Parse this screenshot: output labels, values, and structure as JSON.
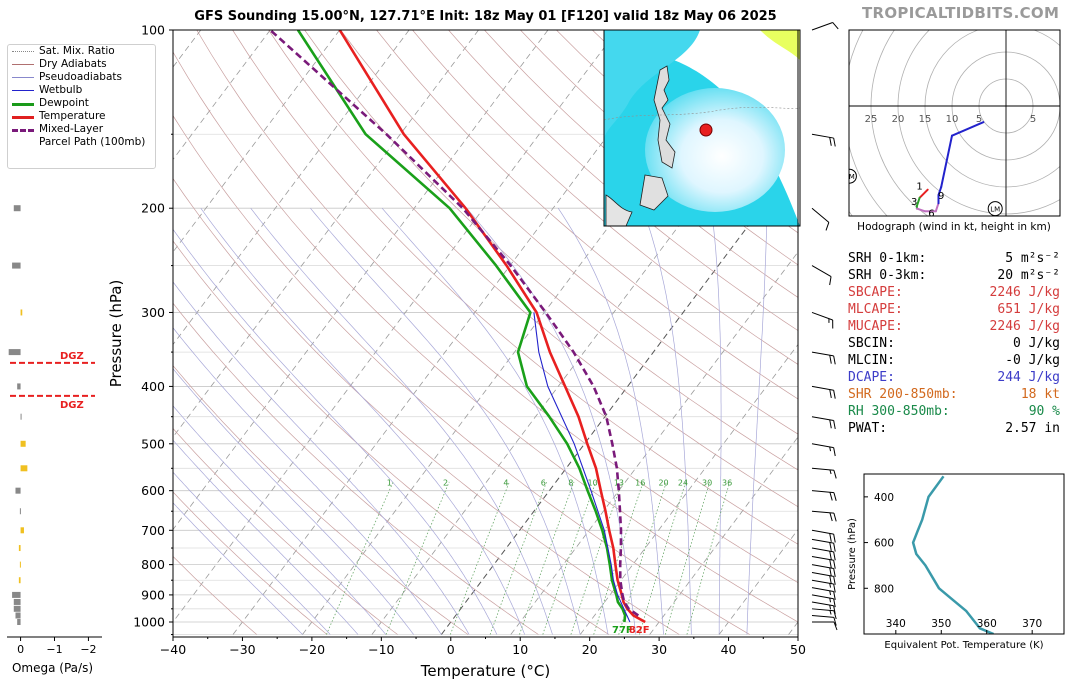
{
  "title": "GFS Sounding 15.00°N, 127.71°E Init: 18z May 01 [F120] valid 18z May 06 2025",
  "watermark": "TROPICALTIDBITS.COM",
  "legend": [
    {
      "label": "Sat. Mix. Ratio",
      "color": "#888888",
      "style": "dotted"
    },
    {
      "label": "Dry Adiabats",
      "color": "#b07070",
      "style": "thin"
    },
    {
      "label": "Pseudoadiabats",
      "color": "#8888cc",
      "style": "thin"
    },
    {
      "label": "Wetbulb",
      "color": "#2222cc",
      "style": "solid"
    },
    {
      "label": "Dewpoint",
      "color": "#1a9a1a",
      "style": "thick"
    },
    {
      "label": "Temperature",
      "color": "#e02020",
      "style": "thick"
    },
    {
      "label": "Mixed-Layer\nParcel Path (100mb)",
      "color": "#7a1a7a",
      "style": "dashed"
    }
  ],
  "indices": [
    {
      "label": "SRH 0-1km:",
      "value": "5 m²s⁻²",
      "color": "#000000"
    },
    {
      "label": "SRH 0-3km:",
      "value": "20 m²s⁻²",
      "color": "#000000"
    },
    {
      "label": "SBCAPE:",
      "value": "2246 J/kg",
      "color": "#d43c3c"
    },
    {
      "label": "MLCAPE:",
      "value": "651 J/kg",
      "color": "#d43c3c"
    },
    {
      "label": "MUCAPE:",
      "value": "2246 J/kg",
      "color": "#d43c3c"
    },
    {
      "label": "SBCIN:",
      "value": "0 J/kg",
      "color": "#000000"
    },
    {
      "label": "MLCIN:",
      "value": "-0 J/kg",
      "color": "#000000"
    },
    {
      "label": "DCAPE:",
      "value": "244 J/kg",
      "color": "#3c3cc8"
    },
    {
      "label": "SHR 200-850mb:",
      "value": "18 kt",
      "color": "#d2691e"
    },
    {
      "label": "RH 300-850mb:",
      "value": "90 %",
      "color": "#1a8a4a"
    },
    {
      "label": "PWAT:",
      "value": "2.57 in",
      "color": "#000000"
    }
  ],
  "chart_data": [
    {
      "type": "line",
      "name": "skew-t",
      "xlabel": "Temperature (°C)",
      "ylabel": "Pressure (hPa)",
      "xlim": [
        -40,
        50
      ],
      "ylim": [
        1050,
        100
      ],
      "yscale": "log",
      "skew_deg_per_decade": 64,
      "x_ticks": [
        -40,
        -30,
        -20,
        -10,
        0,
        10,
        20,
        30,
        40,
        50
      ],
      "y_ticks": [
        100,
        200,
        300,
        400,
        500,
        600,
        700,
        800,
        900,
        1000
      ],
      "series": [
        {
          "name": "Temperature",
          "color": "#e82020",
          "p": [
            1000,
            975,
            950,
            925,
            900,
            850,
            800,
            750,
            700,
            650,
            600,
            550,
            500,
            450,
            400,
            350,
            300,
            250,
            200,
            150,
            100
          ],
          "t": [
            28.0,
            25.6,
            24.0,
            22.7,
            21.7,
            19.5,
            17.5,
            15.4,
            12.9,
            10.3,
            7.4,
            4.3,
            0.4,
            -3.8,
            -9.0,
            -14.9,
            -21.1,
            -30.5,
            -42.6,
            -59.5,
            -80.0
          ]
        },
        {
          "name": "Dewpoint",
          "color": "#1aa01a",
          "p": [
            1000,
            975,
            950,
            925,
            900,
            850,
            800,
            750,
            700,
            650,
            600,
            550,
            500,
            450,
            400,
            350,
            300,
            250,
            200,
            150,
            100
          ],
          "t": [
            25.0,
            24.4,
            23.3,
            21.9,
            20.9,
            18.7,
            16.7,
            14.5,
            11.9,
            8.9,
            5.5,
            1.9,
            -2.5,
            -8.0,
            -14.5,
            -19.5,
            -22.0,
            -32.0,
            -44.9,
            -65.0,
            -86.0
          ]
        },
        {
          "name": "Wetbulb",
          "color": "#2222cc",
          "p": [
            1000,
            950,
            900,
            850,
            800,
            700,
            600,
            500,
            400,
            350,
            300
          ],
          "t": [
            25.8,
            23.5,
            21.1,
            18.9,
            16.9,
            12.2,
            6.0,
            -1.5,
            -11.5,
            -16.5,
            -21.5
          ]
        },
        {
          "name": "Mixed-Layer Parcel Path (100mb)",
          "color": "#7a1a7a",
          "dash": true,
          "p": [
            975,
            950,
            925,
            900,
            850,
            800,
            750,
            700,
            650,
            600,
            550,
            500,
            450,
            400,
            350,
            300,
            250,
            200,
            150,
            100
          ],
          "t": [
            26.3,
            24.2,
            22.8,
            21.8,
            19.9,
            18.2,
            16.5,
            14.6,
            12.4,
            10.0,
            7.3,
            4.0,
            0.2,
            -4.9,
            -11.5,
            -19.8,
            -29.9,
            -43.0,
            -62.0,
            -90.0
          ]
        }
      ],
      "mixing_ratio_labels": [
        "1",
        "2",
        "4",
        "6",
        "8",
        "10",
        "13",
        "16",
        "20",
        "24",
        "30",
        "36"
      ],
      "mixing_ratios": [
        1,
        2,
        4,
        6,
        8,
        10,
        13,
        16,
        20,
        24,
        30,
        36
      ],
      "surface_labels": {
        "dewpoint": "77F",
        "temperature": "82F"
      },
      "wind_barbs": [
        {
          "p": 1000,
          "speed_kt": 10,
          "dir": 90
        },
        {
          "p": 975,
          "speed_kt": 12,
          "dir": 95
        },
        {
          "p": 950,
          "speed_kt": 14,
          "dir": 95
        },
        {
          "p": 925,
          "speed_kt": 15,
          "dir": 100
        },
        {
          "p": 900,
          "speed_kt": 15,
          "dir": 100
        },
        {
          "p": 875,
          "speed_kt": 16,
          "dir": 100
        },
        {
          "p": 850,
          "speed_kt": 17,
          "dir": 100
        },
        {
          "p": 825,
          "speed_kt": 18,
          "dir": 100
        },
        {
          "p": 800,
          "speed_kt": 18,
          "dir": 100
        },
        {
          "p": 775,
          "speed_kt": 18,
          "dir": 100
        },
        {
          "p": 750,
          "speed_kt": 18,
          "dir": 100
        },
        {
          "p": 725,
          "speed_kt": 18,
          "dir": 100
        },
        {
          "p": 700,
          "speed_kt": 18,
          "dir": 100
        },
        {
          "p": 650,
          "speed_kt": 18,
          "dir": 95
        },
        {
          "p": 600,
          "speed_kt": 18,
          "dir": 95
        },
        {
          "p": 550,
          "speed_kt": 16,
          "dir": 95
        },
        {
          "p": 500,
          "speed_kt": 16,
          "dir": 100
        },
        {
          "p": 450,
          "speed_kt": 18,
          "dir": 100
        },
        {
          "p": 400,
          "speed_kt": 20,
          "dir": 100
        },
        {
          "p": 350,
          "speed_kt": 18,
          "dir": 100
        },
        {
          "p": 300,
          "speed_kt": 15,
          "dir": 110
        },
        {
          "p": 250,
          "speed_kt": 12,
          "dir": 120
        },
        {
          "p": 200,
          "speed_kt": 10,
          "dir": 130
        },
        {
          "p": 150,
          "speed_kt": 20,
          "dir": 100
        },
        {
          "p": 100,
          "speed_kt": 10,
          "dir": 70
        }
      ]
    },
    {
      "type": "bar",
      "name": "omega",
      "xlabel": "Omega (Pa/s)",
      "xlim": [
        0.4,
        -2.4
      ],
      "x_ticks": [
        0,
        -1,
        -2
      ],
      "x_tick_labels": [
        "0",
        "−1",
        "−2"
      ],
      "p": [
        1000,
        975,
        950,
        925,
        900,
        850,
        800,
        750,
        700,
        650,
        600,
        550,
        500,
        450,
        400,
        350,
        300,
        250,
        200,
        150
      ],
      "values": [
        0.1,
        0.15,
        0.2,
        0.2,
        0.25,
        0.05,
        0.02,
        0.05,
        -0.1,
        0.02,
        0.15,
        -0.2,
        -0.15,
        0.0,
        0.1,
        0.35,
        -0.05,
        0.25,
        0.2,
        0.25
      ],
      "bar_colors": [
        "#888888",
        "#888888",
        "#888888",
        "#888888",
        "#888888",
        "#f0c020",
        "#f0c020",
        "#f0c020",
        "#f0c020",
        "#888888",
        "#888888",
        "#f0c020",
        "#f0c020",
        "#888888",
        "#888888",
        "#888888",
        "#f0c020",
        "#888888",
        "#888888",
        "#888888"
      ],
      "dgz_label": "DGZ",
      "dgz_p": [
        365,
        415
      ]
    },
    {
      "type": "line",
      "name": "hodograph",
      "caption": "Hodograph (wind in kt, height in km)",
      "ring_labels": [
        "25",
        "20",
        "15",
        "10",
        "5",
        "5"
      ],
      "ring_label_values": [
        -25,
        -20,
        -15,
        -10,
        -5,
        5
      ],
      "u": [
        -14.5,
        -16,
        -16.5,
        -16.5,
        -15,
        -13,
        -12.5,
        -12.5,
        -12,
        -10,
        -4.2
      ],
      "v": [
        -15.5,
        -17,
        -18.5,
        -19,
        -19.5,
        -19.5,
        -18,
        -16.5,
        -15,
        -5.5,
        -3.0
      ],
      "height_labels": [
        {
          "text": "1",
          "u": -16.0,
          "v": -14.8
        },
        {
          "text": "3",
          "u": -17.0,
          "v": -17.7
        },
        {
          "text": "6",
          "u": -13.8,
          "v": -19.8
        },
        {
          "text": "9",
          "u": -12.0,
          "v": -16.6
        }
      ],
      "markers": [
        {
          "text": "RM",
          "u": -29.0,
          "v": -13.0
        },
        {
          "text": "LM",
          "u": -2.0,
          "v": -19.0
        }
      ]
    },
    {
      "type": "line",
      "name": "theta-e",
      "xlabel": "Equivalent Pot. Temperature (K)",
      "ylabel": "Pressure (hPa)",
      "xlim": [
        333,
        377
      ],
      "ylim": [
        1000,
        300
      ],
      "x_ticks": [
        340,
        350,
        360,
        370
      ],
      "y_ticks": [
        400,
        600,
        800
      ],
      "x": [
        361.5,
        358.5,
        357.5,
        355.5,
        352.5,
        349.5,
        346.5,
        344.5,
        343.8,
        344.8,
        345.8,
        347.2,
        350.5
      ],
      "p": [
        1000,
        975,
        950,
        900,
        850,
        800,
        700,
        650,
        600,
        550,
        500,
        400,
        310
      ]
    }
  ]
}
